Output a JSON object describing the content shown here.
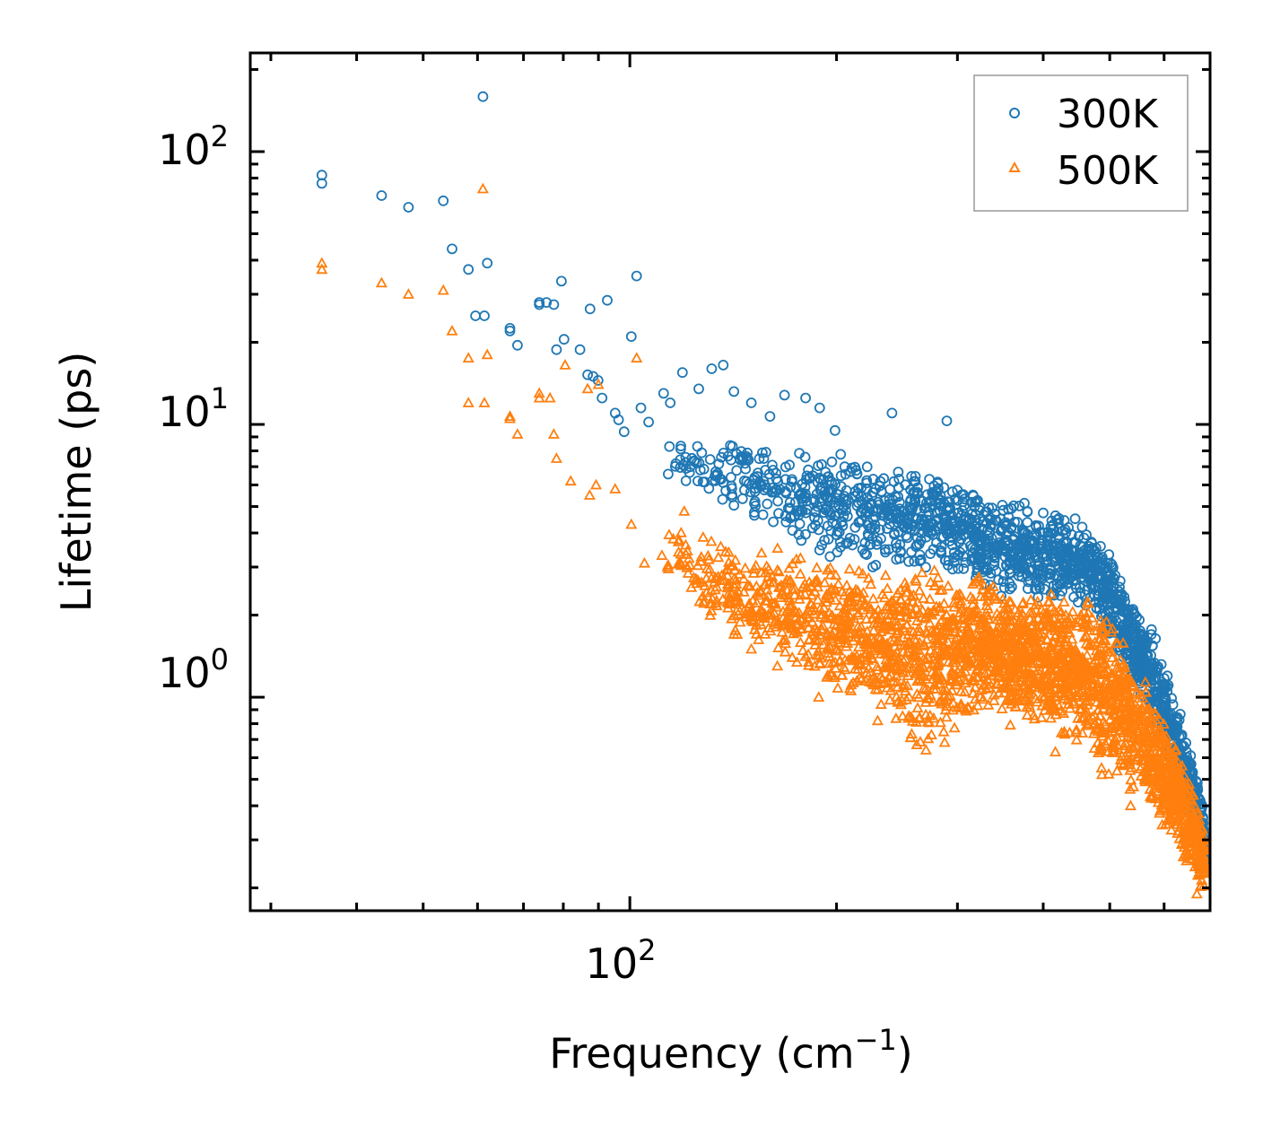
{
  "chart_data": {
    "type": "scatter",
    "title": "",
    "xlabel": "Frequency (cm",
    "xlabel_sup": "−1",
    "xlabel_end": ")",
    "ylabel": "Lifetime (ps)",
    "xscale": "log",
    "yscale": "log",
    "xlim": [
      28,
      700
    ],
    "ylim": [
      0.165,
      230
    ],
    "x_ticks": [
      {
        "value": 100,
        "base": "10",
        "exp": "2"
      }
    ],
    "y_ticks": [
      {
        "value": 1,
        "base": "10",
        "exp": "0"
      },
      {
        "value": 10,
        "base": "10",
        "exp": "1"
      },
      {
        "value": 100,
        "base": "10",
        "exp": "2"
      }
    ],
    "legend_position": "top-right",
    "series": [
      {
        "name": "300K",
        "color": "#1f77b4",
        "marker": "circle",
        "points": [
          [
            35.6,
            82
          ],
          [
            35.6,
            76.5
          ],
          [
            43.5,
            69
          ],
          [
            47.6,
            62.5
          ],
          [
            53.5,
            66
          ],
          [
            55.1,
            44
          ],
          [
            58.2,
            37
          ],
          [
            59.6,
            25
          ],
          [
            61.1,
            159
          ],
          [
            62.0,
            39
          ],
          [
            61.4,
            25
          ],
          [
            66.9,
            22.5
          ],
          [
            66.9,
            22
          ],
          [
            68.6,
            19.5
          ],
          [
            73.8,
            27.5
          ],
          [
            73.8,
            28
          ],
          [
            75.6,
            28
          ],
          [
            77.5,
            27.5
          ],
          [
            78.2,
            18.8
          ],
          [
            79.5,
            33.5
          ],
          [
            80.2,
            20.5
          ],
          [
            84.6,
            18.8
          ],
          [
            86.8,
            15.2
          ],
          [
            87.5,
            26.5
          ],
          [
            88.4,
            15
          ],
          [
            89.9,
            14.5
          ],
          [
            91.1,
            12.5
          ],
          [
            92.7,
            28.5
          ],
          [
            95.2,
            11
          ],
          [
            96.3,
            10.4
          ],
          [
            98.1,
            9.4
          ],
          [
            100.5,
            21
          ],
          [
            102.3,
            35
          ],
          [
            103.8,
            11.5
          ],
          [
            106.5,
            10.2
          ],
          [
            112.0,
            13
          ],
          [
            114.5,
            12
          ],
          [
            119.3,
            15.5
          ],
          [
            126.0,
            13.5
          ],
          [
            131.6,
            16
          ],
          [
            136.8,
            16.5
          ],
          [
            141.8,
            13.2
          ],
          [
            150.3,
            12
          ],
          [
            160.0,
            10.7
          ],
          [
            168.0,
            12.8
          ],
          [
            180.3,
            12.5
          ],
          [
            189.0,
            11.5
          ],
          [
            199.0,
            9.5
          ],
          [
            240.9,
            11
          ],
          [
            289.5,
            10.3
          ],
          [
            346.8,
            4.5
          ],
          [
            379.3,
            4.8
          ],
          [
            454.4,
            3.3
          ],
          [
            499.8,
            2.8
          ],
          [
            540.4,
            2.1
          ],
          [
            567.6,
            1.6
          ],
          [
            606.3,
            1.05
          ],
          [
            625.3,
            0.77
          ],
          [
            649.9,
            0.55
          ],
          [
            668.6,
            0.28
          ]
        ],
        "band": {
          "upper": [
            [
              110,
              9.5
            ],
            [
              140,
              9
            ],
            [
              170,
              8.5
            ],
            [
              200,
              8
            ],
            [
              230,
              7.4
            ],
            [
              260,
              6.8
            ],
            [
              300,
              6.6
            ],
            [
              340,
              5.6
            ],
            [
              380,
              5.2
            ],
            [
              420,
              4.8
            ],
            [
              460,
              4.6
            ],
            [
              500,
              3.4
            ],
            [
              540,
              2.2
            ],
            [
              580,
              1.8
            ],
            [
              610,
              1.2
            ],
            [
              640,
              0.82
            ],
            [
              660,
              0.6
            ],
            [
              680,
              0.45
            ],
            [
              690,
              0.28
            ]
          ],
          "lower": [
            [
              110,
              6.8
            ],
            [
              140,
              4.8
            ],
            [
              170,
              3.8
            ],
            [
              200,
              3.0
            ],
            [
              230,
              2.9
            ],
            [
              260,
              2.9
            ],
            [
              300,
              2.8
            ],
            [
              340,
              2.2
            ],
            [
              380,
              2.3
            ],
            [
              420,
              2.2
            ],
            [
              460,
              2.1
            ],
            [
              500,
              1.6
            ],
            [
              540,
              1.15
            ],
            [
              580,
              0.78
            ],
            [
              610,
              0.55
            ],
            [
              640,
              0.4
            ],
            [
              660,
              0.33
            ],
            [
              680,
              0.27
            ],
            [
              690,
              0.24
            ]
          ],
          "count": 1700
        }
      },
      {
        "name": "500K",
        "color": "#ff7f0e",
        "marker": "triangle",
        "points": [
          [
            35.6,
            39
          ],
          [
            35.6,
            37
          ],
          [
            43.5,
            33
          ],
          [
            47.6,
            30
          ],
          [
            53.5,
            31
          ],
          [
            55.1,
            22
          ],
          [
            58.2,
            17.5
          ],
          [
            58.2,
            12
          ],
          [
            61.1,
            73
          ],
          [
            62.0,
            18
          ],
          [
            61.4,
            12
          ],
          [
            66.9,
            10.7
          ],
          [
            66.9,
            10.5
          ],
          [
            68.6,
            9.2
          ],
          [
            73.8,
            13
          ],
          [
            73.8,
            12.5
          ],
          [
            76.5,
            12.5
          ],
          [
            77.5,
            9.2
          ],
          [
            78.2,
            7.5
          ],
          [
            80.5,
            16.5
          ],
          [
            82.0,
            6.2
          ],
          [
            86.8,
            13.5
          ],
          [
            87.4,
            5.5
          ],
          [
            89.3,
            6.0
          ],
          [
            90.0,
            14
          ],
          [
            95.2,
            5.8
          ],
          [
            100.5,
            4.3
          ],
          [
            102.3,
            17.5
          ],
          [
            105.0,
            3.1
          ],
          [
            113.5,
            3.0
          ],
          [
            120.0,
            4.8
          ],
          [
            125.0,
            2.7
          ],
          [
            131.6,
            2.2
          ],
          [
            141.8,
            1.7
          ],
          [
            150.3,
            1.5
          ],
          [
            164.0,
            1.3
          ],
          [
            188.4,
            1.0
          ],
          [
            229.6,
            0.82
          ],
          [
            270.0,
            0.64
          ],
          [
            358.2,
            0.79
          ],
          [
            416.6,
            0.63
          ],
          [
            487.1,
            0.52
          ],
          [
            536.3,
            0.4
          ],
          [
            596.1,
            0.34
          ],
          [
            640.0,
            0.26
          ],
          [
            669.8,
            0.19
          ]
        ],
        "band": {
          "upper": [
            [
              110,
              4.5
            ],
            [
              140,
              3.8
            ],
            [
              170,
              3.5
            ],
            [
              200,
              3.2
            ],
            [
              230,
              3.0
            ],
            [
              250,
              3.1
            ],
            [
              280,
              3.0
            ],
            [
              300,
              2.6
            ],
            [
              320,
              3.1
            ],
            [
              360,
              2.4
            ],
            [
              400,
              2.6
            ],
            [
              440,
              2.3
            ],
            [
              480,
              2.3
            ],
            [
              520,
              1.8
            ],
            [
              560,
              1.2
            ],
            [
              600,
              0.85
            ],
            [
              640,
              0.6
            ],
            [
              670,
              0.42
            ],
            [
              690,
              0.3
            ]
          ],
          "lower": [
            [
              110,
              2.8
            ],
            [
              140,
              1.6
            ],
            [
              170,
              1.2
            ],
            [
              200,
              1.0
            ],
            [
              230,
              0.85
            ],
            [
              260,
              0.62
            ],
            [
              280,
              0.6
            ],
            [
              310,
              0.8
            ],
            [
              340,
              0.9
            ],
            [
              380,
              0.8
            ],
            [
              420,
              0.75
            ],
            [
              460,
              0.62
            ],
            [
              500,
              0.5
            ],
            [
              540,
              0.42
            ],
            [
              580,
              0.36
            ],
            [
              620,
              0.3
            ],
            [
              650,
              0.24
            ],
            [
              675,
              0.2
            ],
            [
              690,
              0.18
            ]
          ],
          "count": 2600
        }
      }
    ]
  }
}
